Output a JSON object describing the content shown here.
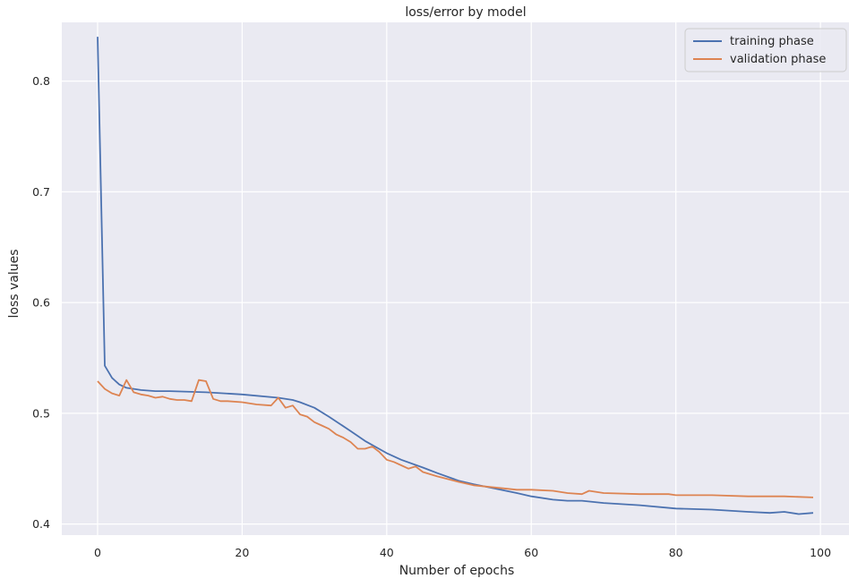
{
  "chart_data": {
    "type": "line",
    "title": "loss/error by model",
    "xlabel": "Number of epochs",
    "ylabel": "loss values",
    "xlim": [
      -4.95,
      103.95
    ],
    "ylim": [
      0.39,
      0.853
    ],
    "xticks": [
      0,
      20,
      40,
      60,
      80,
      100
    ],
    "xtick_labels": [
      "0",
      "20",
      "40",
      "60",
      "80",
      "100"
    ],
    "yticks": [
      0.4,
      0.5,
      0.6,
      0.7,
      0.8
    ],
    "ytick_labels": [
      "0.4",
      "0.5",
      "0.6",
      "0.7",
      "0.8"
    ],
    "grid": true,
    "legend_position": "top-right",
    "background_color": "#eaeaf2",
    "grid_color": "#ffffff",
    "series": [
      {
        "name": "training phase",
        "color": "#4c72b0",
        "x": [
          0,
          1,
          2,
          3,
          4,
          5,
          6,
          8,
          10,
          15,
          20,
          25,
          27,
          28,
          30,
          32,
          35,
          37,
          40,
          42,
          45,
          47,
          50,
          52,
          55,
          58,
          60,
          63,
          65,
          67,
          70,
          75,
          80,
          85,
          90,
          93,
          95,
          97,
          99
        ],
        "y": [
          0.84,
          0.543,
          0.532,
          0.526,
          0.523,
          0.522,
          0.521,
          0.52,
          0.52,
          0.519,
          0.517,
          0.514,
          0.512,
          0.51,
          0.505,
          0.497,
          0.484,
          0.475,
          0.464,
          0.458,
          0.451,
          0.446,
          0.439,
          0.436,
          0.432,
          0.428,
          0.425,
          0.422,
          0.421,
          0.421,
          0.419,
          0.417,
          0.414,
          0.413,
          0.411,
          0.41,
          0.411,
          0.409,
          0.41
        ]
      },
      {
        "name": "validation phase",
        "color": "#dd8452",
        "x": [
          0,
          1,
          2,
          3,
          4,
          5,
          6,
          7,
          8,
          9,
          10,
          11,
          12,
          13,
          14,
          15,
          16,
          17,
          18,
          20,
          22,
          24,
          25,
          26,
          27,
          28,
          29,
          30,
          31,
          32,
          33,
          34,
          35,
          36,
          37,
          38,
          39,
          40,
          41,
          42,
          43,
          44,
          45,
          47,
          50,
          52,
          55,
          58,
          60,
          63,
          65,
          67,
          68,
          70,
          75,
          79,
          80,
          85,
          90,
          95,
          99
        ],
        "y": [
          0.529,
          0.522,
          0.518,
          0.516,
          0.53,
          0.519,
          0.517,
          0.516,
          0.514,
          0.515,
          0.513,
          0.512,
          0.512,
          0.511,
          0.53,
          0.529,
          0.513,
          0.511,
          0.511,
          0.51,
          0.508,
          0.507,
          0.514,
          0.505,
          0.507,
          0.499,
          0.497,
          0.492,
          0.489,
          0.486,
          0.481,
          0.478,
          0.474,
          0.468,
          0.468,
          0.47,
          0.465,
          0.458,
          0.456,
          0.453,
          0.45,
          0.452,
          0.447,
          0.443,
          0.438,
          0.435,
          0.433,
          0.431,
          0.431,
          0.43,
          0.428,
          0.427,
          0.43,
          0.428,
          0.427,
          0.427,
          0.426,
          0.426,
          0.425,
          0.425,
          0.424
        ]
      }
    ]
  }
}
